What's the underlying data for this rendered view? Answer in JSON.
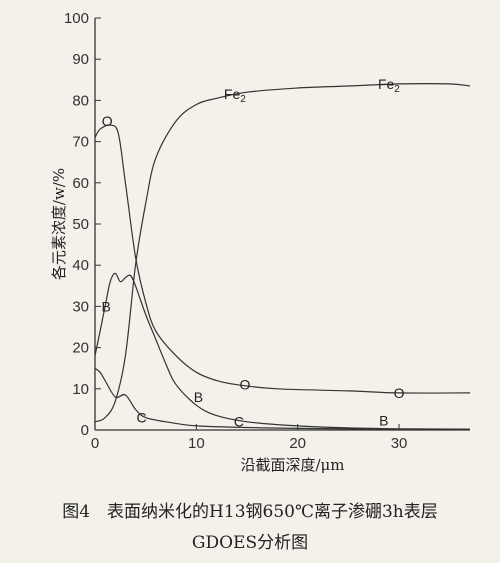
{
  "chart_data": {
    "type": "line",
    "title": "",
    "xlabel": "沿截面深度/μm",
    "ylabel": "各元素浓度/w/%",
    "xlim": [
      0,
      37
    ],
    "ylim": [
      0,
      100
    ],
    "x_ticks": [
      0,
      10,
      20,
      30
    ],
    "y_ticks": [
      0,
      10,
      20,
      30,
      40,
      50,
      60,
      70,
      80,
      90,
      100
    ],
    "grid": false,
    "series": [
      {
        "name": "Fe2",
        "points": [
          [
            0,
            2
          ],
          [
            1,
            3
          ],
          [
            2,
            7
          ],
          [
            3,
            18
          ],
          [
            4,
            40
          ],
          [
            5,
            55
          ],
          [
            6,
            66
          ],
          [
            8,
            75
          ],
          [
            10,
            79
          ],
          [
            12,
            80.5
          ],
          [
            15,
            82
          ],
          [
            20,
            83
          ],
          [
            25,
            83.5
          ],
          [
            30,
            84
          ],
          [
            35,
            84
          ],
          [
            37,
            83.5
          ]
        ],
        "labels": [
          {
            "text": "Fe",
            "sub": "2",
            "x": 13.8,
            "y": 81.5
          },
          {
            "text": "Fe",
            "sub": "2",
            "x": 29,
            "y": 84
          }
        ]
      },
      {
        "name": "O",
        "points": [
          [
            0,
            71
          ],
          [
            0.5,
            73
          ],
          [
            1.5,
            74
          ],
          [
            2.3,
            72
          ],
          [
            3,
            60
          ],
          [
            4,
            42
          ],
          [
            5,
            31
          ],
          [
            6,
            24
          ],
          [
            8,
            18
          ],
          [
            10,
            14
          ],
          [
            12,
            12
          ],
          [
            14,
            11
          ],
          [
            18,
            10
          ],
          [
            25,
            9.5
          ],
          [
            30,
            9
          ],
          [
            37,
            9
          ]
        ],
        "labels": [
          {
            "text": "O",
            "x": 1.2,
            "y": 75
          },
          {
            "text": "O",
            "x": 14.8,
            "y": 11
          },
          {
            "text": "O",
            "x": 30,
            "y": 9
          }
        ]
      },
      {
        "name": "B",
        "points": [
          [
            0,
            18
          ],
          [
            0.5,
            24
          ],
          [
            1,
            30
          ],
          [
            1.5,
            36
          ],
          [
            2,
            38
          ],
          [
            2.5,
            36
          ],
          [
            3,
            37
          ],
          [
            3.5,
            37.5
          ],
          [
            4,
            35
          ],
          [
            5,
            28
          ],
          [
            6,
            22
          ],
          [
            7,
            16
          ],
          [
            8,
            11
          ],
          [
            10,
            6
          ],
          [
            12,
            3.5
          ],
          [
            15,
            2
          ],
          [
            20,
            1
          ],
          [
            25,
            0.5
          ],
          [
            30,
            0.3
          ],
          [
            37,
            0.2
          ]
        ],
        "labels": [
          {
            "text": "B",
            "x": 1.1,
            "y": 30
          },
          {
            "text": "B",
            "x": 10.2,
            "y": 8
          },
          {
            "text": "B",
            "x": 28.5,
            "y": 2.3
          }
        ]
      },
      {
        "name": "C",
        "points": [
          [
            0,
            15
          ],
          [
            0.5,
            14
          ],
          [
            1,
            12
          ],
          [
            2,
            8
          ],
          [
            3,
            8.5
          ],
          [
            4,
            5
          ],
          [
            5,
            3
          ],
          [
            7,
            2
          ],
          [
            10,
            1
          ],
          [
            15,
            0.6
          ],
          [
            20,
            0.4
          ],
          [
            30,
            0.2
          ],
          [
            37,
            0.2
          ]
        ],
        "labels": [
          {
            "text": "C",
            "x": 4.6,
            "y": 3
          },
          {
            "text": "C",
            "x": 14.2,
            "y": 2.1
          }
        ]
      }
    ]
  },
  "caption": {
    "line1": "图4　表面纳米化的H13钢650℃离子渗硼3h表层",
    "line2": "GDOES分析图"
  }
}
